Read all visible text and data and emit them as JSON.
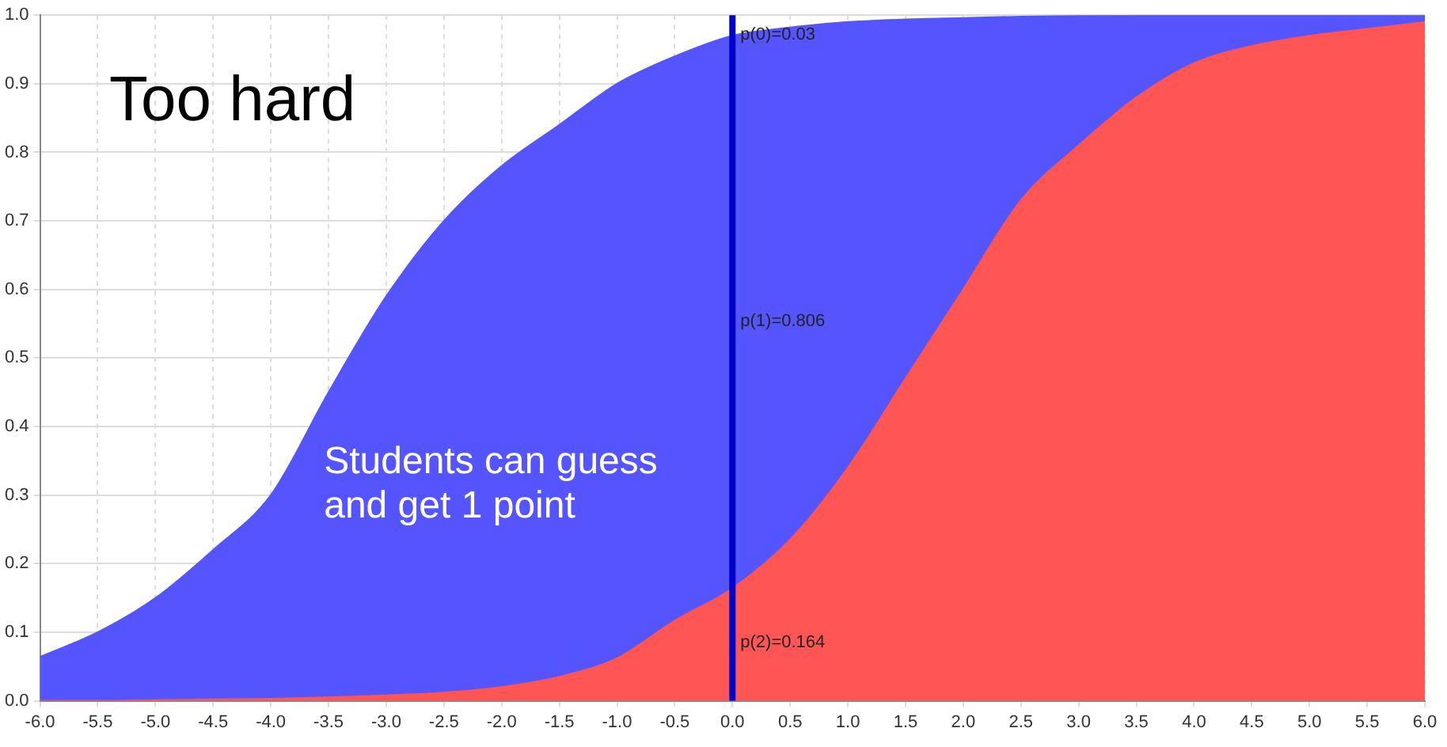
{
  "chart_data": {
    "type": "area",
    "stacked": true,
    "x": [
      -6,
      -5.5,
      -5,
      -4.5,
      -4,
      -3.5,
      -3,
      -2.5,
      -2,
      -1.5,
      -1,
      -0.5,
      0,
      0.5,
      1,
      1.5,
      2,
      2.5,
      3,
      3.5,
      4,
      4.5,
      5,
      5.5,
      6
    ],
    "series": [
      {
        "color": "#ff5555",
        "values": [
          0,
          0,
          0.001,
          0.002,
          0.003,
          0.005,
          0.008,
          0.012,
          0.02,
          0.035,
          0.062,
          0.117,
          0.164,
          0.235,
          0.34,
          0.47,
          0.6,
          0.73,
          0.81,
          0.88,
          0.93,
          0.955,
          0.97,
          0.98,
          0.99
        ]
      },
      {
        "color": "#5555ff",
        "values": [
          0.064,
          0.1,
          0.149,
          0.218,
          0.297,
          0.445,
          0.582,
          0.688,
          0.76,
          0.805,
          0.838,
          0.823,
          0.806,
          0.747,
          0.65,
          0.524,
          0.396,
          0.268,
          0.189,
          0.12,
          0.07,
          0.045,
          0.03,
          0.02,
          0.01
        ]
      }
    ],
    "xlim": [
      -6,
      6
    ],
    "xticks": [
      {
        "value": -6,
        "label": "-6.0"
      },
      -5.5,
      {
        "value": -5,
        "label": "-5.0"
      },
      -4.5,
      {
        "value": -4,
        "label": "-4.0"
      },
      -3.5,
      {
        "value": -3,
        "label": "-3.0"
      },
      -2.5,
      {
        "value": -2,
        "label": "-2.0"
      },
      -1.5,
      {
        "value": -1,
        "label": "-1.0"
      },
      -0.5,
      {
        "value": 0,
        "label": "0.0"
      },
      0.5,
      {
        "value": 1,
        "label": "1.0"
      },
      1.5,
      {
        "value": 2,
        "label": "2.0"
      },
      2.5,
      {
        "value": 3,
        "label": "3.0"
      },
      3.5,
      {
        "value": 4,
        "label": "4.0"
      },
      4.5,
      {
        "value": 5,
        "label": "5.0"
      },
      5.5,
      {
        "value": 6,
        "label": "6.0"
      }
    ],
    "ylim": [
      0,
      1
    ],
    "yticks": [
      {
        "value": 0,
        "label": "0.0"
      },
      0.1,
      0.2,
      0.3,
      0.4,
      0.5,
      0.6,
      0.7,
      0.8,
      0.9,
      {
        "value": 1,
        "label": "1.0"
      }
    ],
    "grid": true,
    "ref_lines": [
      {
        "axis": "x",
        "value": 0,
        "color": "#0000cc"
      }
    ],
    "annotations": [
      "Too hard",
      "Students can guess and get 1 point",
      "p(0)=0.03",
      "p(1)=0.806",
      "p(2)=0.164"
    ]
  }
}
